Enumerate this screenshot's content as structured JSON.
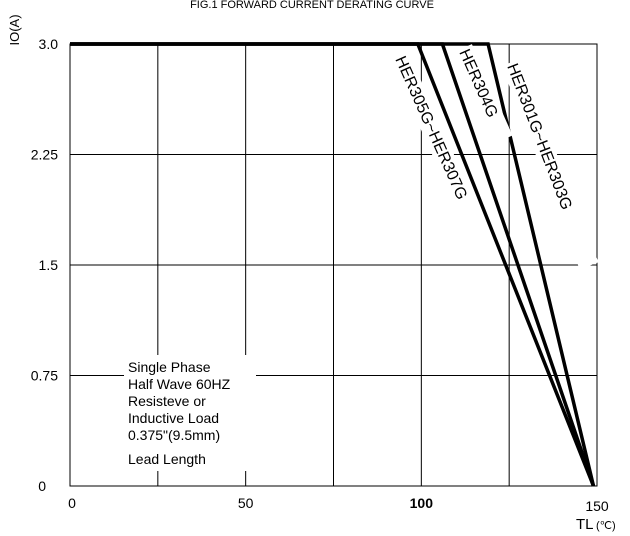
{
  "chart_data": {
    "type": "line",
    "title": "FIG.1  FORWARD CURRENT  DERATING CURVE",
    "ylabel": "IO(A)",
    "xlabel": "TL",
    "xlabel_unit": "(℃)",
    "xlim": [
      0,
      150
    ],
    "ylim": [
      0,
      3.0
    ],
    "x_ticks": [
      {
        "value": 0,
        "label": "0"
      },
      {
        "value": 50,
        "label": "50"
      },
      {
        "value": 100,
        "label": "100"
      },
      {
        "value": 150,
        "label": "150"
      }
    ],
    "y_ticks": [
      {
        "value": 0,
        "label": "0"
      },
      {
        "value": 0.75,
        "label": "0.75"
      },
      {
        "value": 1.5,
        "label": "1.5"
      },
      {
        "value": 2.25,
        "label": "2.25"
      },
      {
        "value": 3.0,
        "label": "3.0"
      }
    ],
    "grid": true,
    "series": [
      {
        "name": "HER305G~HER307G",
        "x": [
          0,
          99,
          149
        ],
        "y": [
          3.0,
          3.0,
          0
        ]
      },
      {
        "name": "HER304G",
        "x": [
          0,
          106,
          149
        ],
        "y": [
          3.0,
          3.0,
          0
        ]
      },
      {
        "name": "HER301G~HER303G",
        "x": [
          0,
          119,
          149
        ],
        "y": [
          3.0,
          3.0,
          0
        ]
      }
    ],
    "annotation": [
      "Single Phase",
      "Half Wave 60HZ",
      "Resisteve or",
      "Inductive Load",
      "0.375\"(9.5mm)",
      "Lead Length"
    ]
  }
}
